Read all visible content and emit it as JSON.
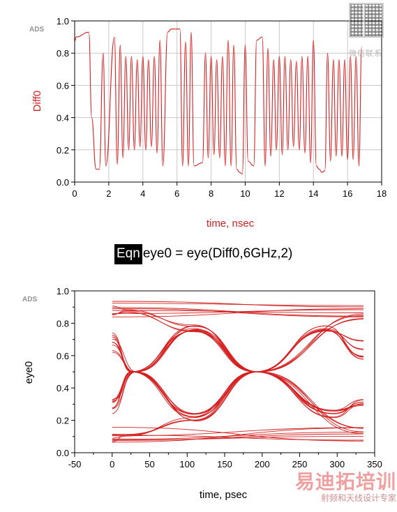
{
  "chart_data": [
    {
      "type": "line",
      "badge": "ADS",
      "xlabel": "time, nsec",
      "ylabel": "Diff0",
      "xlim": [
        0,
        18
      ],
      "ylim": [
        0.0,
        1.0
      ],
      "x_ticks": [
        0,
        2,
        4,
        6,
        8,
        10,
        12,
        14,
        16,
        18
      ],
      "y_ticks": [
        0.0,
        0.2,
        0.4,
        0.6,
        0.8,
        1.0
      ],
      "x_tick_labels": [
        "0",
        "2",
        "4",
        "6",
        "8",
        "10",
        "12",
        "14",
        "16",
        "18"
      ],
      "y_tick_labels": [
        "0.0",
        "0.2",
        "0.4",
        "0.6",
        "0.8",
        "1.0"
      ],
      "grid": true,
      "color": "#d42020",
      "series": [
        {
          "x": [
            0.0,
            0.08,
            0.83,
            1.0,
            1.25,
            1.45,
            1.67,
            1.83,
            2.33,
            2.5,
            2.67,
            2.83,
            3.0,
            3.17,
            3.33,
            3.5,
            3.67,
            3.83,
            4.0,
            4.17,
            4.33,
            4.5,
            4.67,
            4.83,
            5.0,
            5.17,
            5.45,
            5.67,
            6.17,
            6.33,
            6.5,
            6.67,
            6.83,
            7.0,
            7.5,
            7.67,
            7.83,
            8.0,
            8.17,
            8.33,
            8.5,
            8.67,
            8.83,
            9.0,
            9.17,
            9.33,
            9.5,
            9.67,
            9.83,
            10.0,
            10.17,
            10.5,
            10.67,
            11.0,
            11.17,
            11.33,
            11.5,
            11.67,
            11.83,
            12.0,
            12.17,
            12.33,
            12.5,
            12.67,
            12.83,
            13.0,
            13.17,
            13.33,
            13.5,
            13.67,
            13.83,
            14.0,
            14.17,
            14.33,
            14.5,
            14.67,
            14.83,
            15.0,
            15.17,
            15.33,
            15.5,
            15.67,
            15.83,
            16.0,
            16.17,
            16.33,
            16.5,
            16.67,
            16.83
          ],
          "y": [
            0.87,
            0.9,
            0.93,
            0.4,
            0.08,
            0.08,
            0.8,
            0.1,
            0.9,
            0.11,
            0.85,
            0.15,
            0.78,
            0.2,
            0.78,
            0.2,
            0.76,
            0.22,
            0.78,
            0.2,
            0.76,
            0.22,
            0.78,
            0.18,
            0.88,
            0.1,
            0.93,
            0.95,
            0.95,
            0.1,
            0.87,
            0.1,
            0.93,
            0.1,
            0.12,
            0.8,
            0.15,
            0.78,
            0.17,
            0.76,
            0.15,
            0.78,
            0.1,
            0.88,
            0.1,
            0.85,
            0.08,
            0.06,
            0.05,
            0.85,
            0.13,
            0.1,
            0.88,
            0.9,
            0.1,
            0.83,
            0.16,
            0.76,
            0.2,
            0.78,
            0.17,
            0.78,
            0.2,
            0.76,
            0.22,
            0.75,
            0.2,
            0.78,
            0.18,
            0.78,
            0.12,
            0.88,
            0.1,
            0.08,
            0.06,
            0.07,
            0.8,
            0.13,
            0.76,
            0.16,
            0.76,
            0.16,
            0.76,
            0.14,
            0.78,
            0.14,
            0.78,
            0.1,
            0.84
          ]
        }
      ]
    },
    {
      "type": "line",
      "badge": "ADS",
      "xlabel": "time, psec",
      "ylabel": "eye0",
      "xlim": [
        -50,
        350
      ],
      "ylim": [
        0.0,
        1.0
      ],
      "x_ticks": [
        -50,
        0,
        50,
        100,
        150,
        200,
        250,
        300,
        350
      ],
      "y_ticks": [
        0.0,
        0.2,
        0.4,
        0.6,
        0.8,
        1.0
      ],
      "x_tick_labels": [
        "-50",
        "0",
        "50",
        "100",
        "150",
        "200",
        "250",
        "300",
        "350"
      ],
      "y_tick_labels": [
        "0.0",
        "0.2",
        "0.4",
        "0.6",
        "0.8",
        "1.0"
      ],
      "grid": false,
      "color": "#d42020",
      "unit_interval_psec": 166.7,
      "crossings_psec": [
        28,
        193
      ],
      "high_rail_range": [
        0.83,
        0.95
      ],
      "low_rail_range": [
        0.06,
        0.16
      ],
      "eye_top_range": [
        0.74,
        0.79
      ],
      "eye_bottom_range": [
        0.19,
        0.26
      ]
    }
  ],
  "equation": {
    "tag": "Eqn",
    "text": "eye0 = eye(Diff0,6GHz,2)"
  },
  "watermark": {
    "qr_caption": "微信联系",
    "brand": "易迪拓培训",
    "tagline": "射频和天线设计专家"
  }
}
